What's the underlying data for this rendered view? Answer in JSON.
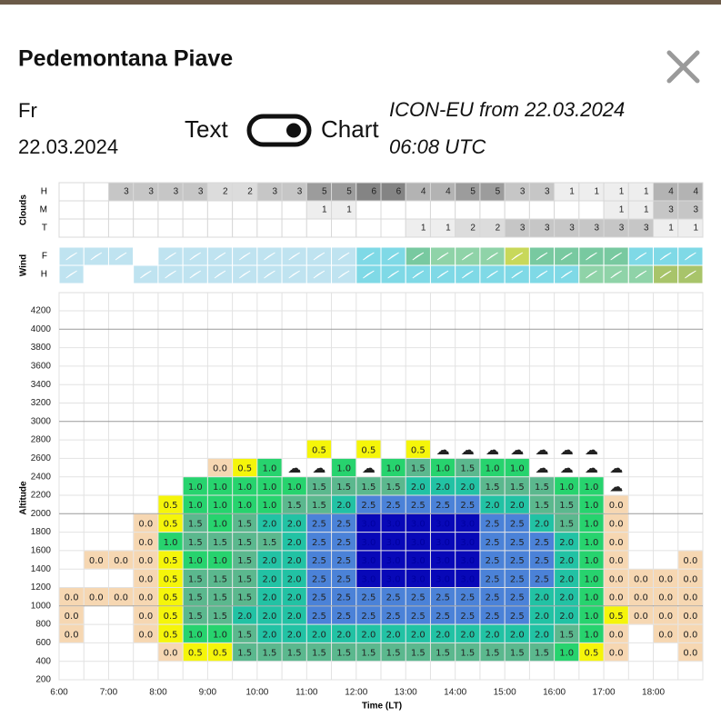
{
  "header": {
    "title": "Pedemontana Piave",
    "day": "Fr",
    "date": "22.03.2024",
    "toggle_left": "Text",
    "toggle_right": "Chart",
    "model_line1": "ICON-EU from 22.03.2024",
    "model_line2": "06:08 UTC"
  },
  "clouds": {
    "label": "Clouds",
    "row_labels": [
      "H",
      "M",
      "T"
    ],
    "rows": [
      [
        null,
        null,
        "3",
        "3",
        "3",
        "3",
        "2",
        "2",
        "3",
        "3",
        "5",
        "5",
        "6",
        "6",
        "4",
        "4",
        "5",
        "5",
        "3",
        "3",
        "1",
        "1",
        "1",
        "1",
        "4",
        "4"
      ],
      [
        null,
        null,
        null,
        null,
        null,
        null,
        null,
        null,
        null,
        null,
        "1",
        "1",
        null,
        null,
        null,
        null,
        null,
        null,
        null,
        null,
        null,
        null,
        "1",
        "1",
        "3",
        "3"
      ],
      [
        null,
        null,
        null,
        null,
        null,
        null,
        null,
        null,
        null,
        null,
        null,
        null,
        null,
        null,
        "1",
        "1",
        "2",
        "2",
        "3",
        "3",
        "3",
        "3",
        "3",
        "3",
        "1",
        "1"
      ]
    ]
  },
  "wind": {
    "label": "Wind",
    "row_labels": [
      "F",
      "H"
    ]
  },
  "grid": {
    "ylabel": "Altitude",
    "xlabel": "Time (LT)",
    "yticks": [
      200,
      400,
      600,
      800,
      1000,
      1200,
      1400,
      1600,
      1800,
      2000,
      2200,
      2400,
      2600,
      2800,
      3000,
      3200,
      3400,
      3600,
      3800,
      4000,
      4200
    ],
    "xticks": [
      "6:00",
      "7:00",
      "8:00",
      "9:00",
      "10:00",
      "11:00",
      "12:00",
      "13:00",
      "14:00",
      "15:00",
      "16:00",
      "17:00",
      "18:00"
    ],
    "rows": [
      [
        null,
        null,
        null,
        null,
        "0.0",
        "0.5",
        "0.5",
        "1.5",
        "1.5",
        "1.5",
        "1.5",
        "1.5",
        "1.5",
        "1.5",
        "1.5",
        "1.5",
        "1.5",
        "1.5",
        "1.5",
        "1.5",
        "1.0",
        "0.5",
        "0.0",
        null,
        null,
        "0.0"
      ],
      [
        "0.0",
        null,
        null,
        "0.0",
        "0.5",
        "1.0",
        "1.0",
        "1.5",
        "2.0",
        "2.0",
        "2.0",
        "2.0",
        "2.0",
        "2.0",
        "2.0",
        "2.0",
        "2.0",
        "2.0",
        "2.0",
        "2.0",
        "1.5",
        "1.0",
        "0.0",
        null,
        "0.0",
        "0.0"
      ],
      [
        "0.0",
        null,
        null,
        "0.0",
        "0.5",
        "1.5",
        "1.5",
        "2.0",
        "2.0",
        "2.0",
        "2.5",
        "2.5",
        "2.5",
        "2.5",
        "2.5",
        "2.5",
        "2.5",
        "2.5",
        "2.5",
        "2.0",
        "2.0",
        "1.0",
        "0.5",
        "0.0",
        "0.0",
        "0.0"
      ],
      [
        "0.0",
        "0.0",
        "0.0",
        "0.0",
        "0.5",
        "1.5",
        "1.5",
        "1.5",
        "2.0",
        "2.0",
        "2.5",
        "2.5",
        "2.5",
        "2.5",
        "2.5",
        "2.5",
        "2.5",
        "2.5",
        "2.5",
        "2.0",
        "2.0",
        "1.0",
        "0.0",
        "0.0",
        "0.0",
        "0.0"
      ],
      [
        null,
        null,
        null,
        "0.0",
        "0.5",
        "1.5",
        "1.5",
        "1.5",
        "2.0",
        "2.0",
        "2.5",
        "2.5",
        "3.0",
        "3.0",
        "3.0",
        "3.0",
        "3.0",
        "2.5",
        "2.5",
        "2.5",
        "2.0",
        "1.0",
        "0.0",
        "0.0",
        "0.0",
        "0.0"
      ],
      [
        null,
        "0.0",
        "0.0",
        "0.0",
        "0.5",
        "1.0",
        "1.0",
        "1.5",
        "2.0",
        "2.0",
        "2.5",
        "2.5",
        "3.0",
        "3.0",
        "3.0",
        "3.0",
        "3.0",
        "2.5",
        "2.5",
        "2.5",
        "2.0",
        "1.0",
        "0.0",
        null,
        null,
        "0.0"
      ],
      [
        null,
        null,
        null,
        "0.0",
        "1.0",
        "1.5",
        "1.5",
        "1.5",
        "1.5",
        "2.0",
        "2.5",
        "2.5",
        "3.0",
        "3.0",
        "3.0",
        "3.0",
        "3.0",
        "2.5",
        "2.5",
        "2.5",
        "2.0",
        "1.0",
        "0.0",
        null,
        null,
        null
      ],
      [
        null,
        null,
        null,
        "0.0",
        "0.5",
        "1.5",
        "1.0",
        "1.5",
        "2.0",
        "2.0",
        "2.5",
        "2.5",
        "3.0",
        "3.0",
        "3.0",
        "3.0",
        "3.0",
        "2.5",
        "2.5",
        "2.0",
        "1.5",
        "1.0",
        "0.0",
        null,
        null,
        null
      ],
      [
        null,
        null,
        null,
        null,
        "0.5",
        "1.0",
        "1.0",
        "1.0",
        "1.0",
        "1.5",
        "1.5",
        "2.0",
        "2.5",
        "2.5",
        "2.5",
        "2.5",
        "2.5",
        "2.0",
        "2.0",
        "1.5",
        "1.5",
        "1.0",
        "0.0",
        null,
        null,
        null
      ],
      [
        null,
        null,
        null,
        null,
        null,
        "1.0",
        "1.0",
        "1.0",
        "1.0",
        "1.0",
        "1.5",
        "1.5",
        "1.5",
        "1.5",
        "2.0",
        "2.0",
        "2.0",
        "1.5",
        "1.5",
        "1.5",
        "1.0",
        "1.0",
        "☁",
        null,
        null,
        null
      ],
      [
        null,
        null,
        null,
        null,
        null,
        null,
        "0.0",
        "0.5",
        "1.0",
        "☁",
        "☁",
        "1.0",
        "☁",
        "1.0",
        "1.5",
        "1.0",
        "1.5",
        "1.0",
        "1.0",
        "☁",
        "☁",
        "☁",
        "☁",
        null,
        null,
        null
      ],
      [
        null,
        null,
        null,
        null,
        null,
        null,
        null,
        null,
        null,
        null,
        "0.5",
        null,
        "0.5",
        null,
        "0.5",
        "☁",
        "☁",
        "☁",
        "☁",
        "☁",
        "☁",
        "☁",
        null,
        null,
        null,
        null
      ]
    ]
  }
}
